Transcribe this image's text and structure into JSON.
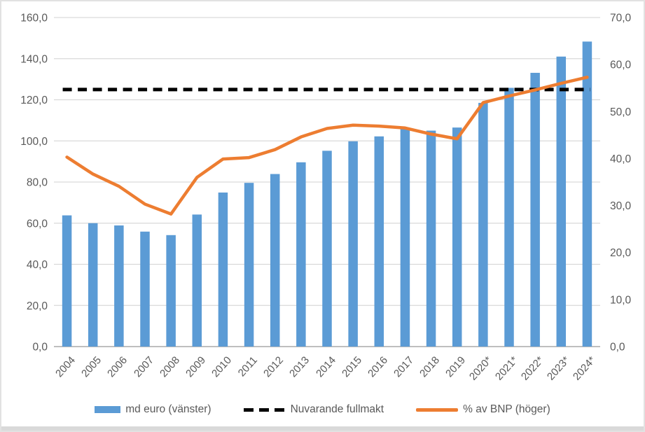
{
  "chart_data": {
    "type": "bar",
    "title": "",
    "categories": [
      "2004",
      "2005",
      "2006",
      "2007",
      "2008",
      "2009",
      "2010",
      "2011",
      "2012",
      "2013",
      "2014",
      "2015",
      "2016",
      "2017",
      "2018",
      "2019",
      "2020*",
      "2021*",
      "2022*",
      "2023*",
      "2024*"
    ],
    "series": [
      {
        "name": "md euro (vänster)",
        "type": "bar",
        "axis": "left",
        "color": "#5B9BD5",
        "values": [
          63.8,
          60.0,
          58.9,
          55.9,
          54.2,
          64.2,
          74.9,
          79.6,
          83.9,
          89.6,
          95.2,
          99.8,
          102.2,
          105.7,
          105.0,
          106.5,
          118.5,
          125.8,
          133.1,
          141.0,
          148.3
        ]
      },
      {
        "name": "Nuvarande fullmakt",
        "type": "dashed_line",
        "axis": "left",
        "color": "#000000",
        "constant_value": 125.0
      },
      {
        "name": "% av BNP (höger)",
        "type": "line",
        "axis": "right",
        "color": "#ED7D31",
        "values": [
          40.3,
          36.7,
          34.1,
          30.3,
          28.2,
          36.0,
          39.9,
          40.2,
          41.9,
          44.6,
          46.4,
          47.1,
          46.9,
          46.5,
          45.2,
          44.2,
          51.9,
          53.3,
          54.6,
          56.0,
          57.3
        ]
      }
    ],
    "left_axis": {
      "min": 0,
      "max": 160,
      "tick_step": 20,
      "tick_labels": [
        "160,0",
        "140,0",
        "120,0",
        "100,0",
        "80,0",
        "60,0",
        "40,0",
        "20,0",
        "0,0"
      ]
    },
    "right_axis": {
      "min": 0,
      "max": 70,
      "tick_step": 10,
      "tick_labels": [
        "70,0",
        "60,0",
        "50,0",
        "40,0",
        "30,0",
        "20,0",
        "10,0",
        "0,0"
      ]
    },
    "legend": {
      "position": "bottom",
      "entries": [
        "md euro (vänster)",
        "Nuvarande fullmakt",
        "% av BNP (höger)"
      ]
    },
    "grid": true,
    "colors": {
      "gridline": "#D9D9D9",
      "axis_line": "#BFBFBF",
      "tick_label": "#595959",
      "bottom_band": "#D9D9D9",
      "background": "#FFFFFF"
    }
  }
}
